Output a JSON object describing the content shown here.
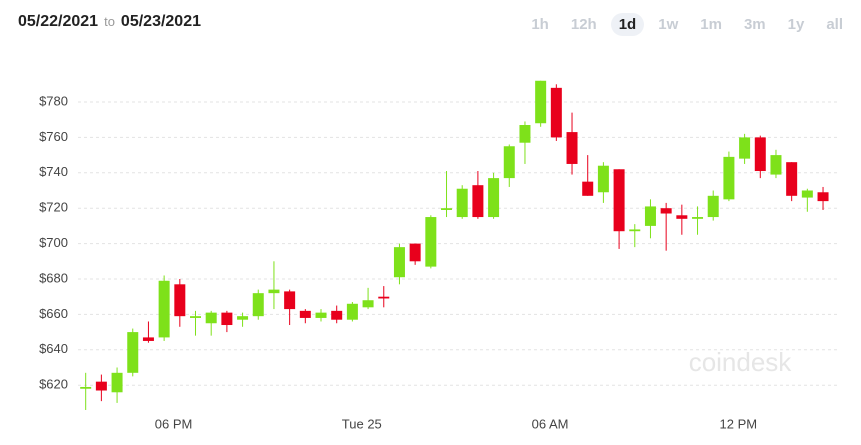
{
  "header": {
    "from": "05/22/2021",
    "to_word": "to",
    "to": "05/23/2021"
  },
  "ranges": [
    "1h",
    "12h",
    "1d",
    "1w",
    "1m",
    "3m",
    "1y",
    "all"
  ],
  "selected_range": 2,
  "watermark": "coindesk",
  "chart_data": {
    "type": "candlestick",
    "up_color": "#7ee11a",
    "down_color": "#e8001c",
    "xlim": [
      -1,
      48.4
    ],
    "xticks": [
      {
        "value": 5.6,
        "label": "06 PM"
      },
      {
        "value": 17.6,
        "label": "Tue 25"
      },
      {
        "value": 29.6,
        "label": "06 AM"
      },
      {
        "value": 41.6,
        "label": "12 PM"
      }
    ],
    "ylim": [
      600,
      800
    ],
    "yticks": [
      {
        "value": 620,
        "label": "$620"
      },
      {
        "value": 640,
        "label": "$640"
      },
      {
        "value": 660,
        "label": "$660"
      },
      {
        "value": 680,
        "label": "$680"
      },
      {
        "value": 700,
        "label": "$700"
      },
      {
        "value": 720,
        "label": "$720"
      },
      {
        "value": 740,
        "label": "$740"
      },
      {
        "value": 760,
        "label": "$760"
      },
      {
        "value": 780,
        "label": "$780"
      }
    ],
    "grid": true,
    "open": [
      618,
      622,
      616,
      627,
      647,
      647,
      677,
      658,
      655,
      661,
      657,
      659,
      672,
      673,
      662,
      658,
      662,
      657,
      664,
      670,
      681,
      700,
      687,
      719,
      715,
      733,
      715,
      737,
      757,
      768,
      788,
      763,
      735,
      729,
      742,
      707,
      710,
      720,
      716,
      714,
      715,
      725,
      748,
      760,
      739,
      746,
      726,
      729
    ],
    "high": [
      627,
      626,
      630,
      652,
      656,
      682,
      680,
      662,
      662,
      662,
      661,
      674,
      690,
      674,
      663,
      663,
      665,
      667,
      675,
      676,
      700,
      700,
      716,
      741,
      733,
      741,
      740,
      756,
      769,
      792,
      790,
      774,
      750,
      746,
      742,
      711,
      725,
      723,
      722,
      721,
      730,
      752,
      762,
      761,
      753,
      746,
      731,
      732
    ],
    "low": [
      606,
      611,
      610,
      625,
      644,
      645,
      653,
      648,
      648,
      650,
      653,
      657,
      663,
      654,
      655,
      656,
      655,
      656,
      663,
      664,
      677,
      688,
      686,
      715,
      714,
      714,
      714,
      732,
      745,
      766,
      758,
      739,
      727,
      723,
      697,
      698,
      703,
      696,
      705,
      705,
      713,
      724,
      745,
      737,
      737,
      724,
      718,
      719
    ],
    "close": [
      619,
      617,
      627,
      650,
      645,
      679,
      659,
      659,
      661,
      654,
      659,
      672,
      674,
      663,
      658,
      661,
      657,
      666,
      668,
      669,
      698,
      690,
      715,
      720,
      731,
      715,
      737,
      755,
      767,
      792,
      760,
      745,
      727,
      744,
      707,
      708,
      721,
      717,
      714,
      715,
      727,
      749,
      760,
      741,
      750,
      727,
      730,
      724
    ]
  }
}
